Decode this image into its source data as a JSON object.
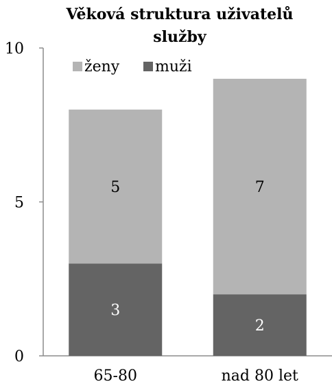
{
  "chart_data": {
    "type": "bar",
    "stacked": true,
    "title": "Věková struktura uživatelů služby",
    "title_lines": [
      "Věková struktura uživatelů",
      "služby"
    ],
    "categories": [
      "65-80",
      "nad 80 let"
    ],
    "series": [
      {
        "name": "muži",
        "values": [
          3,
          2
        ],
        "color": "#646464",
        "label_color": "#ffffff"
      },
      {
        "name": "ženy",
        "values": [
          5,
          7
        ],
        "color": "#b4b4b4",
        "label_color": "#000000"
      }
    ],
    "legend": [
      "ženy",
      "muži"
    ],
    "legend_placement": "top-left",
    "ylim": [
      0,
      10
    ],
    "yticks": [
      0,
      5,
      10
    ],
    "grid": false,
    "xlabel": "",
    "ylabel": ""
  }
}
